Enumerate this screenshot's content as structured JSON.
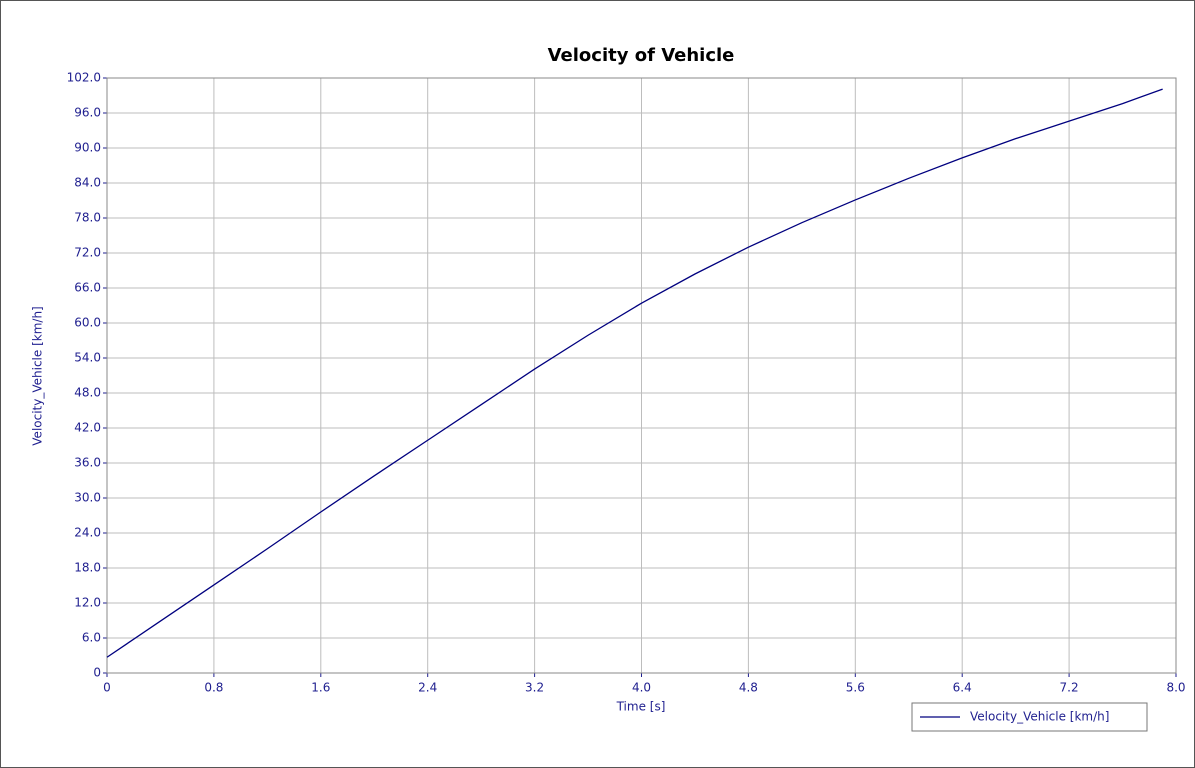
{
  "chart_data": {
    "type": "line",
    "title": "Velocity of Vehicle",
    "xlabel": "Time [s]",
    "ylabel": "Velocity_Vehicle [km/h]",
    "x": [
      0,
      0.4,
      0.8,
      1.2,
      1.6,
      2.0,
      2.4,
      2.8,
      3.2,
      3.6,
      4.0,
      4.4,
      4.8,
      5.2,
      5.6,
      6.0,
      6.4,
      6.8,
      7.2,
      7.6,
      7.9
    ],
    "series": [
      {
        "name": "Velocity_Vehicle [km/h]",
        "color": "#00007f",
        "values": [
          2.7,
          8.9,
          15.1,
          21.3,
          27.6,
          33.8,
          39.9,
          46.0,
          52.1,
          57.9,
          63.4,
          68.4,
          73.0,
          77.2,
          81.1,
          84.8,
          88.3,
          91.6,
          94.6,
          97.6,
          100.1
        ]
      }
    ],
    "xlim": [
      0,
      8
    ],
    "xticks": [
      0,
      0.8,
      1.6,
      2.4,
      3.2,
      {
        "value": 4,
        "label": "4.0"
      },
      4.8,
      5.6,
      6.4,
      7.2,
      {
        "value": 8,
        "label": "8.0"
      }
    ],
    "ylim": [
      0,
      102
    ],
    "yticks": [
      0,
      {
        "value": 6,
        "label": "6.0"
      },
      {
        "value": 12,
        "label": "12.0"
      },
      {
        "value": 18,
        "label": "18.0"
      },
      {
        "value": 24,
        "label": "24.0"
      },
      {
        "value": 30,
        "label": "30.0"
      },
      {
        "value": 36,
        "label": "36.0"
      },
      {
        "value": 42,
        "label": "42.0"
      },
      {
        "value": 48,
        "label": "48.0"
      },
      {
        "value": 54,
        "label": "54.0"
      },
      {
        "value": 60,
        "label": "60.0"
      },
      {
        "value": 66,
        "label": "66.0"
      },
      {
        "value": 72,
        "label": "72.0"
      },
      {
        "value": 78,
        "label": "78.0"
      },
      {
        "value": 84,
        "label": "84.0"
      },
      {
        "value": 90,
        "label": "90.0"
      },
      {
        "value": 96,
        "label": "96.0"
      },
      {
        "value": 102,
        "label": "102.0"
      }
    ],
    "grid": true,
    "legend": "bottom-right"
  }
}
